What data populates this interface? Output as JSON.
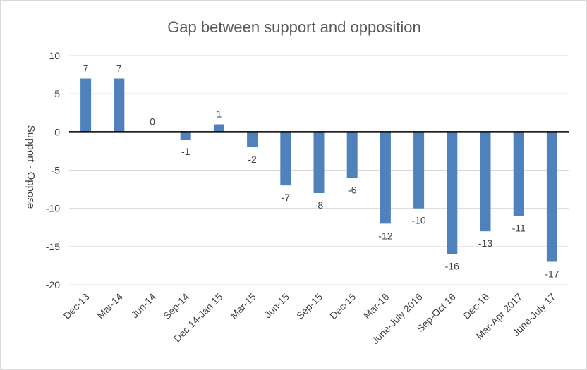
{
  "chart_data": {
    "type": "bar",
    "title": "Gap between support and opposition",
    "xlabel": "",
    "ylabel": "Support - Oppose",
    "ylim": [
      -20,
      10
    ],
    "yticks": [
      10,
      5,
      0,
      -5,
      -10,
      -15,
      -20
    ],
    "grid": true,
    "legend": "none",
    "categories": [
      "Dec-13",
      "Mar-14",
      "Jun-14",
      "Sep-14",
      "Dec 14-Jan 15",
      "Mar-15",
      "Jun-15",
      "Sep-15",
      "Dec-15",
      "Mar-16",
      "June-July 2016",
      "Sep-Oct 16",
      "Dec-16",
      "Mar-Apr 2017",
      "June-July 17"
    ],
    "values": [
      7,
      7,
      0,
      -1,
      1,
      -2,
      -7,
      -8,
      -6,
      -12,
      -10,
      -16,
      -13,
      -11,
      -17
    ],
    "colors": {
      "bar": "#4f81bd",
      "grid": "#d9d9d9",
      "zero_line": "#000000"
    }
  }
}
